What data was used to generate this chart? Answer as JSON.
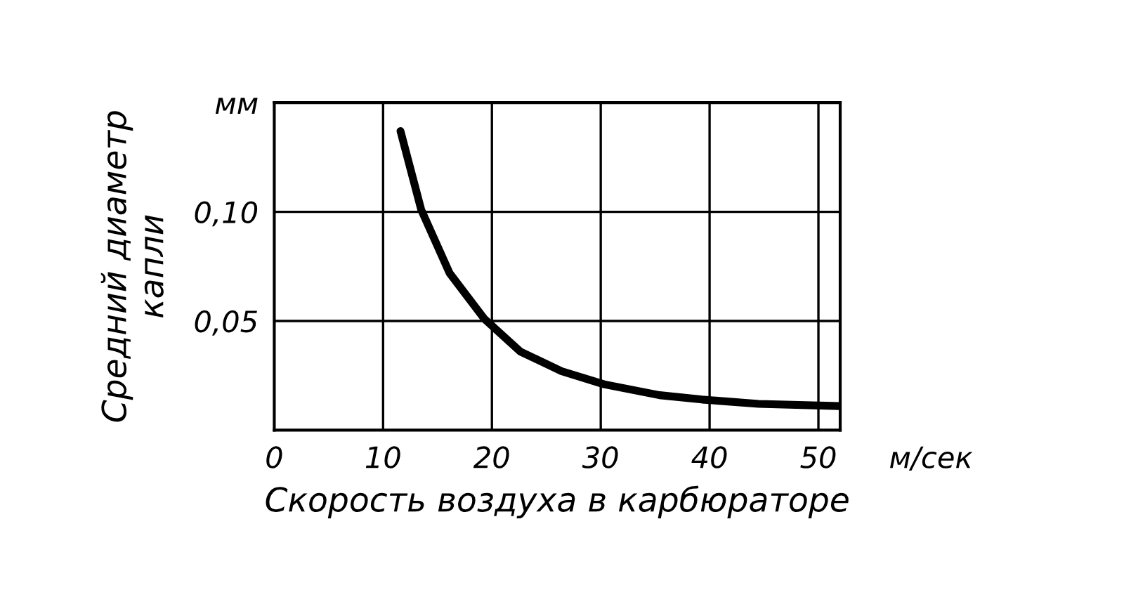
{
  "chart_data": {
    "type": "line",
    "xlabel": "Скорость воздуха в карбюраторе",
    "ylabel": "Средний диаметр\nкапли",
    "x": [
      11.6,
      13.5,
      16.1,
      19.3,
      22.6,
      26.4,
      30.3,
      35.4,
      39.3,
      44.5,
      51.9
    ],
    "series": [
      {
        "color": "#000000",
        "values": [
          0.137,
          0.101,
          0.072,
          0.051,
          0.036,
          0.027,
          0.021,
          0.016,
          0.014,
          0.012,
          0.011
        ]
      }
    ],
    "xlim": [
      0,
      52
    ],
    "xticks": [
      0,
      10,
      20,
      30,
      40,
      50
    ],
    "ylim": [
      0,
      0.15
    ],
    "yticks": [
      {
        "value": 0.05,
        "label": "0,05"
      },
      {
        "value": 0.1,
        "label": "0,10"
      },
      {
        "value": 0.15,
        "label": "мм"
      }
    ],
    "annotations": [
      "м/сек"
    ],
    "grid": true,
    "marker": "none",
    "line_style": "solid"
  }
}
